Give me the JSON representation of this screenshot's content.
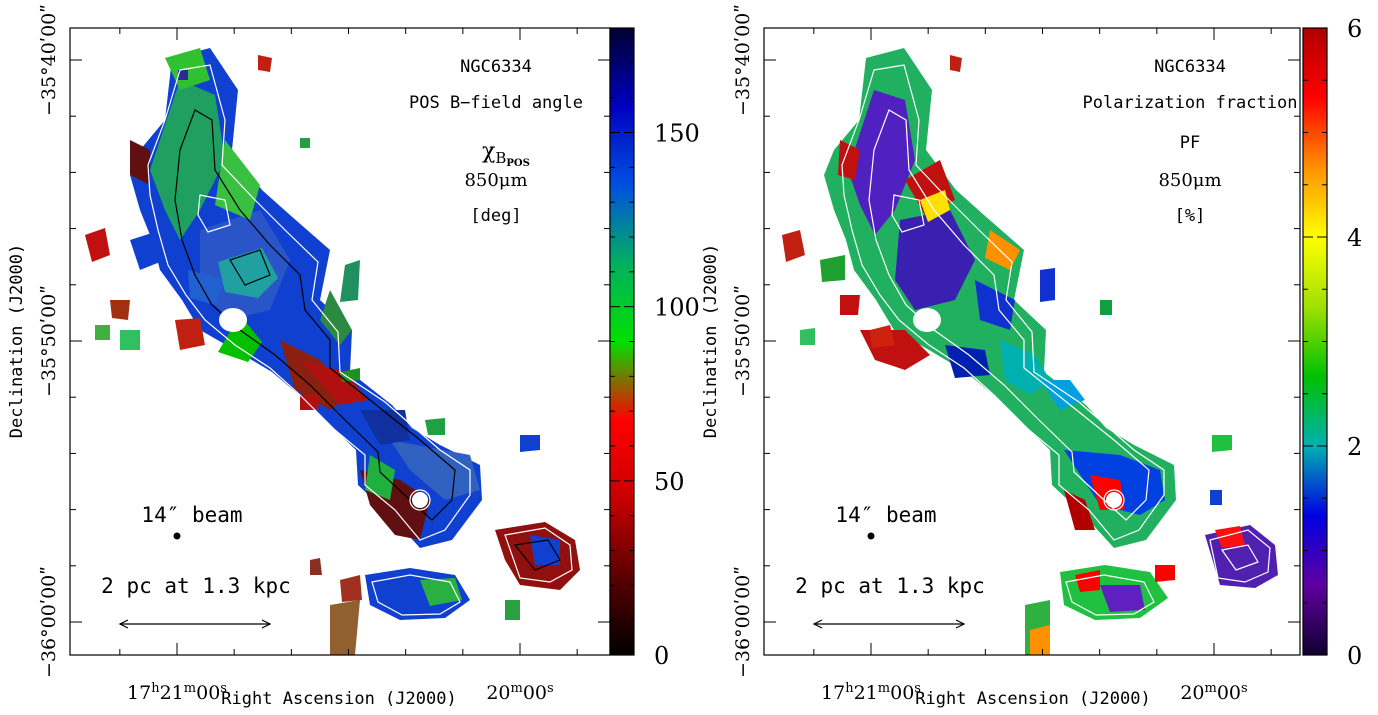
{
  "chart_data": [
    {
      "type": "heatmap",
      "object_label": "NGC6334",
      "quantity_label": "POS B−field angle",
      "symbol_main": "χ",
      "symbol_sub": "B",
      "symbol_subsub": "POS",
      "wavelength_label": "850μm",
      "unit_label": "[deg]",
      "colorbar": {
        "min": 0,
        "max": 180,
        "ticks": [
          0,
          50,
          100,
          150
        ],
        "palette": [
          "#000000",
          "#5a0000",
          "#c80000",
          "#ff0000",
          "#00e000",
          "#00b060",
          "#0050e0",
          "#0000c0",
          "#000030"
        ]
      },
      "xlabel": "Right Ascension (J2000)",
      "ylabel": "Declination (J2000)",
      "x_ticks": [
        {
          "h": "17",
          "hs": "h",
          "m": "21",
          "ms": "m",
          "s": "00",
          "ss": "s",
          "ra_sec": 62460
        },
        {
          "h": "",
          "hs": "",
          "m": "20",
          "ms": "m",
          "s": "00",
          "ss": "s",
          "ra_sec": 62400
        }
      ],
      "y_ticks": [
        {
          "label": "−35°40ʹ00ʺ",
          "dec_arcmin": -2140
        },
        {
          "label": "−35°50ʹ00ʺ",
          "dec_arcmin": -2150
        },
        {
          "label": "−36°00ʹ00ʺ",
          "dec_arcmin": -2160
        }
      ],
      "beam_label": "14″ beam",
      "scale_label": "2 pc at 1.3 kpc"
    },
    {
      "type": "heatmap",
      "object_label": "NGC6334",
      "quantity_label": "Polarization fraction",
      "symbol_text": "PF",
      "wavelength_label": "850μm",
      "unit_label": "[%]",
      "colorbar": {
        "min": 0,
        "max": 6,
        "ticks": [
          0,
          2,
          4,
          6
        ],
        "palette": [
          "#100030",
          "#6000a0",
          "#0000e0",
          "#00b0b0",
          "#00c000",
          "#a0e000",
          "#ffff00",
          "#ff9000",
          "#ff0000",
          "#b00000"
        ]
      },
      "xlabel": "Right Ascension (J2000)",
      "ylabel": "Declination (J2000)",
      "x_ticks": [
        {
          "h": "17",
          "hs": "h",
          "m": "21",
          "ms": "m",
          "s": "00",
          "ss": "s",
          "ra_sec": 62460
        },
        {
          "h": "",
          "hs": "",
          "m": "20",
          "ms": "m",
          "s": "00",
          "ss": "s",
          "ra_sec": 62400
        }
      ],
      "y_ticks": [
        {
          "label": "−35°40ʹ00ʺ",
          "dec_arcmin": -2140
        },
        {
          "label": "−35°50ʹ00ʺ",
          "dec_arcmin": -2150
        },
        {
          "label": "−36°00ʹ00ʺ",
          "dec_arcmin": -2160
        }
      ],
      "beam_label": "14″ beam",
      "scale_label": "2 pc at 1.3 kpc"
    }
  ]
}
